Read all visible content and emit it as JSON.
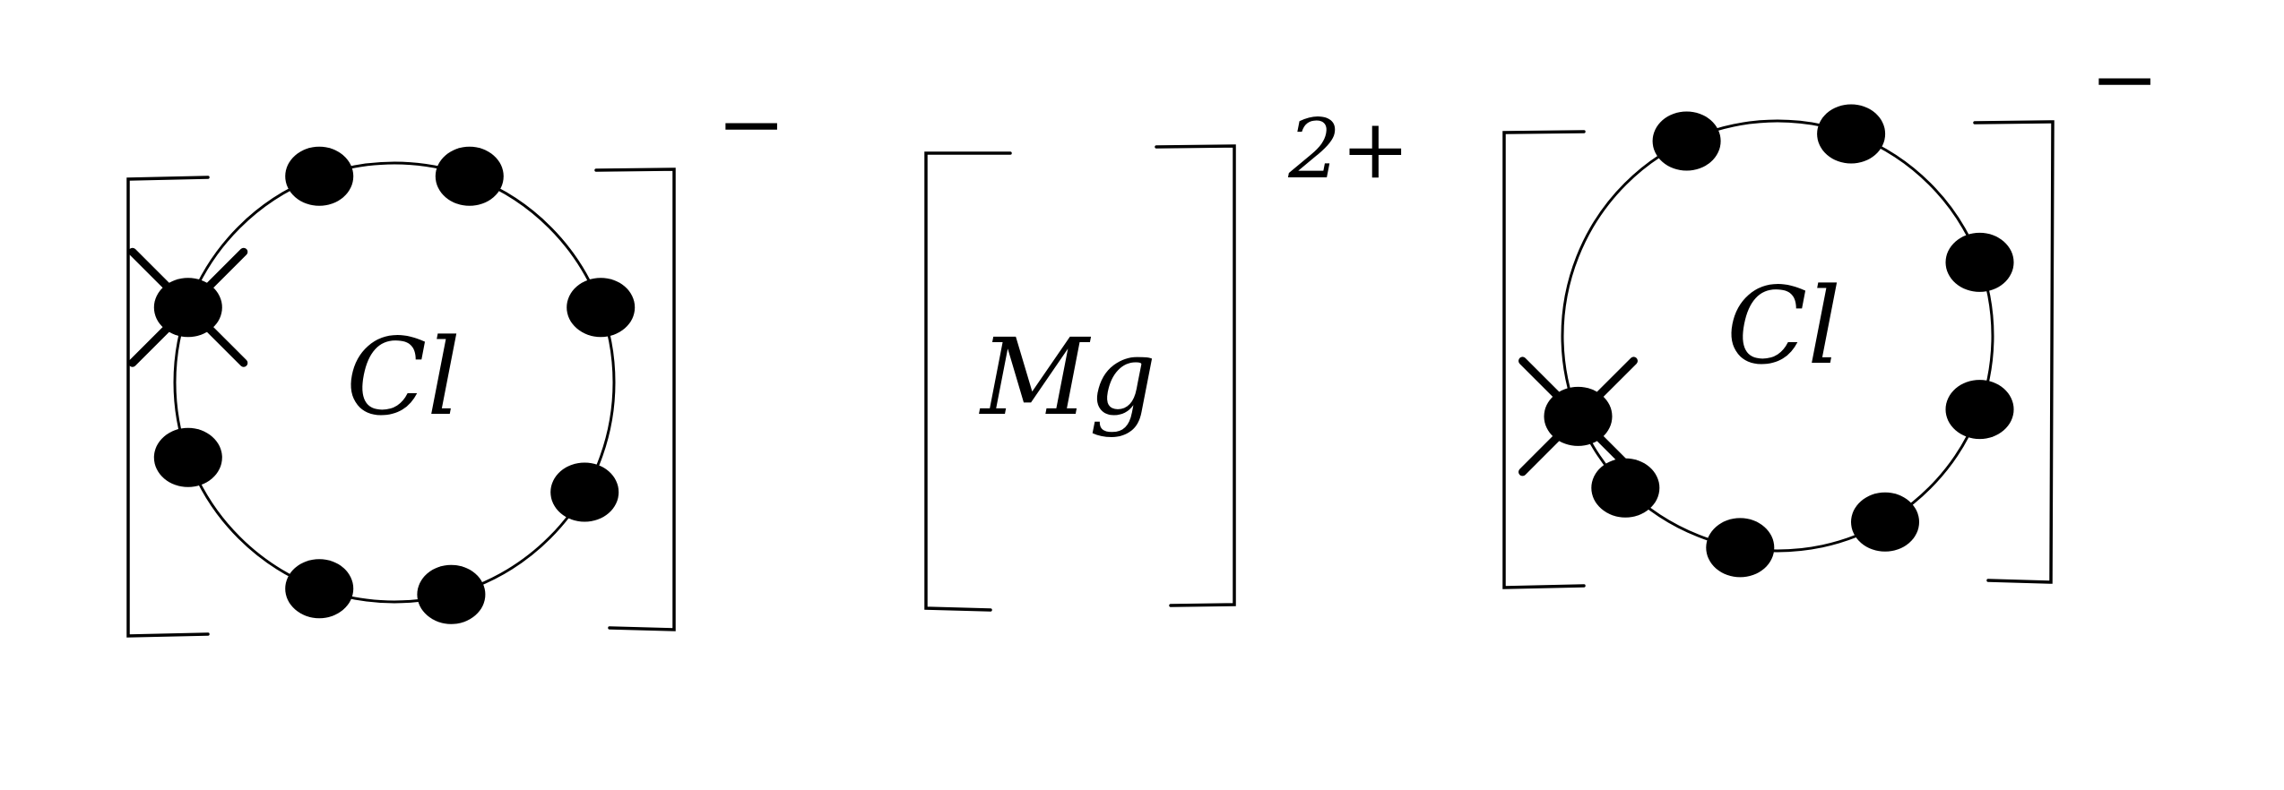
{
  "colors": {
    "ink": "#000000",
    "background": "#ffffff"
  },
  "ions": [
    {
      "symbol": "Cl",
      "charge": "−",
      "outer_electrons": 8,
      "transferred_electrons": 1,
      "electron_marks": [
        "dot",
        "dot",
        "dot",
        "dot",
        "dot",
        "dot",
        "dot",
        "cross"
      ]
    },
    {
      "symbol": "Mg",
      "charge": "2+",
      "outer_electrons": 0,
      "transferred_electrons": 0,
      "electron_marks": []
    },
    {
      "symbol": "Cl",
      "charge": "−",
      "outer_electrons": 8,
      "transferred_electrons": 1,
      "electron_marks": [
        "cross",
        "dot",
        "dot",
        "dot",
        "dot",
        "dot",
        "dot",
        "dot"
      ]
    }
  ]
}
